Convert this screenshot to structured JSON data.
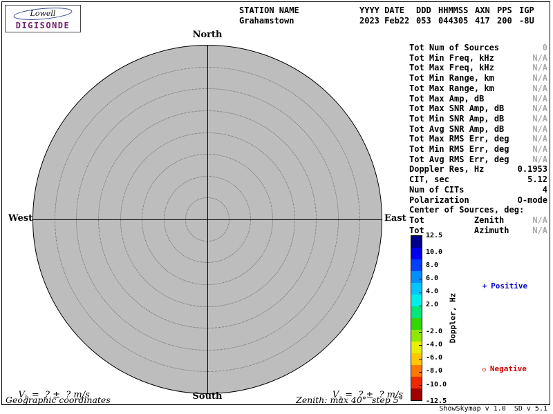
{
  "logo": {
    "brand": "Lowell",
    "product": "DIGISONDE",
    "product_color": "#73216e"
  },
  "header": {
    "columns": [
      {
        "label": "STATION NAME",
        "value": "Grahamstown"
      },
      {
        "label": "YYYY DATE",
        "value": "2023 Feb22"
      },
      {
        "label": "DDD",
        "value": "053"
      },
      {
        "label": "HHMMSS",
        "value": "044305"
      },
      {
        "label": "AXN",
        "value": "417"
      },
      {
        "label": "PPS",
        "value": "200"
      },
      {
        "label": "IGP",
        "value": "-8U"
      }
    ]
  },
  "stats": {
    "muted_color": "#aaaaaa",
    "rows": [
      {
        "label": "Tot Num of Sources",
        "value": "0",
        "muted": true
      },
      {
        "label": "Tot Min Freq, kHz",
        "value": "N/A",
        "muted": true
      },
      {
        "label": "Tot Max Freq, kHz",
        "value": "N/A",
        "muted": true
      },
      {
        "label": "Tot Min Range, km",
        "value": "N/A",
        "muted": true
      },
      {
        "label": "Tot Max Range, km",
        "value": "N/A",
        "muted": true
      },
      {
        "label": "Tot Max Amp, dB",
        "value": "N/A",
        "muted": true
      },
      {
        "label": "Tot Max SNR Amp, dB",
        "value": "N/A",
        "muted": true
      },
      {
        "label": "Tot Min SNR Amp, dB",
        "value": "N/A",
        "muted": true
      },
      {
        "label": "Tot Avg SNR Amp, dB",
        "value": "N/A",
        "muted": true
      },
      {
        "label": "Tot Max RMS Err, deg",
        "value": "N/A",
        "muted": true
      },
      {
        "label": "Tot Min RMS Err, deg",
        "value": "N/A",
        "muted": true
      },
      {
        "label": "Tot Avg RMS Err, deg",
        "value": "N/A",
        "muted": true
      },
      {
        "label": "Doppler Res, Hz",
        "value": "0.1953",
        "muted": false
      },
      {
        "label": "CIT, sec",
        "value": "5.12",
        "muted": false
      },
      {
        "label": "Num of CITs",
        "value": "4",
        "muted": false
      },
      {
        "label": "Polarization",
        "value": "O-mode",
        "muted": false
      },
      {
        "label": "Center of Sources, deg:",
        "value": "",
        "muted": false
      },
      {
        "label": "Tot          Zenith",
        "value": "N/A",
        "muted": true
      },
      {
        "label": "Tot          Azimuth",
        "value": "N/A",
        "muted": true
      }
    ]
  },
  "legend": {
    "positive": {
      "marker": "+",
      "label": "Positive",
      "color": "#0000cc"
    },
    "negative": {
      "marker": "○",
      "label": "Negative",
      "color": "#cc0000"
    }
  },
  "footer": {
    "vh_var": "V",
    "vh_sub": "h",
    "vh_rest": " =  ? ±  ? m/s",
    "vz_var": "V",
    "vz_sub": "z",
    "vz_rest": " =  ? ±  ? m/s",
    "coords_note": "Geographic coordinates",
    "zenith_note": "Zenith: max 40°  step 5°",
    "credit": "ShowSkymap v 1.0  SD v 5.1"
  },
  "chart_data": {
    "type": "scatter",
    "projection": "polar-skymap",
    "direction_labels": [
      "North",
      "East",
      "South",
      "West"
    ],
    "zenith_max_deg": 40,
    "zenith_step_deg": 5,
    "num_sources": 0,
    "points": [],
    "disc_color": "#bdbdbd",
    "colorbar": {
      "label": "Doppler, Hz",
      "min": -12.5,
      "max": 12.5,
      "ticks": [
        "12.5",
        "10.0",
        "8.0",
        "6.0",
        "4.0",
        "2.0",
        "-2.0",
        "-4.0",
        "-6.0",
        "-8.0",
        "-10.0",
        "-12.5"
      ],
      "segment_colors": [
        "#00008b",
        "#0000f0",
        "#0040ff",
        "#0090ff",
        "#00c8ff",
        "#00f0e8",
        "#00e87a",
        "#30d800",
        "#90e800",
        "#e8f000",
        "#ffc800",
        "#ff7800",
        "#f02800",
        "#a00000"
      ]
    }
  }
}
